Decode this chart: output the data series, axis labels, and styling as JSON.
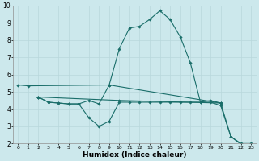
{
  "xlabel": "Humidex (Indice chaleur)",
  "ylabel": "",
  "background_color": "#cce8ec",
  "grid_color": "#b8d8dc",
  "line_color": "#1a6e6a",
  "xlim": [
    -0.5,
    23.5
  ],
  "ylim": [
    2,
    10
  ],
  "xticks": [
    0,
    1,
    2,
    3,
    4,
    5,
    6,
    7,
    8,
    9,
    10,
    11,
    12,
    13,
    14,
    15,
    16,
    17,
    18,
    19,
    20,
    21,
    22,
    23
  ],
  "yticks": [
    2,
    3,
    4,
    5,
    6,
    7,
    8,
    9,
    10
  ],
  "line1_x": [
    0,
    1,
    9,
    20
  ],
  "line1_y": [
    5.4,
    5.35,
    5.4,
    4.35
  ],
  "line2_x": [
    2,
    3,
    4,
    5,
    6,
    7,
    8,
    9,
    10,
    11,
    12,
    13,
    14,
    15,
    16,
    17,
    18,
    19,
    20,
    21,
    22,
    23
  ],
  "line2_y": [
    4.7,
    4.4,
    4.35,
    4.3,
    4.3,
    4.5,
    4.3,
    5.4,
    7.5,
    8.7,
    8.8,
    9.2,
    9.7,
    9.2,
    8.2,
    6.7,
    4.4,
    4.5,
    4.35,
    2.4,
    2.0,
    2.0
  ],
  "line3_x": [
    2,
    3,
    4,
    5,
    6,
    7,
    8,
    9,
    10,
    11,
    12,
    13,
    14,
    15,
    16,
    17,
    18,
    19,
    20,
    21,
    22,
    23
  ],
  "line3_y": [
    4.7,
    4.4,
    4.35,
    4.3,
    4.3,
    3.5,
    3.0,
    3.3,
    4.4,
    4.4,
    4.4,
    4.4,
    4.4,
    4.4,
    4.4,
    4.4,
    4.4,
    4.4,
    4.2,
    2.4,
    1.95,
    1.9
  ],
  "line4_x": [
    2,
    10,
    20
  ],
  "line4_y": [
    4.7,
    4.5,
    4.35
  ],
  "marker": "D",
  "markersize": 1.8,
  "linewidth": 0.8
}
